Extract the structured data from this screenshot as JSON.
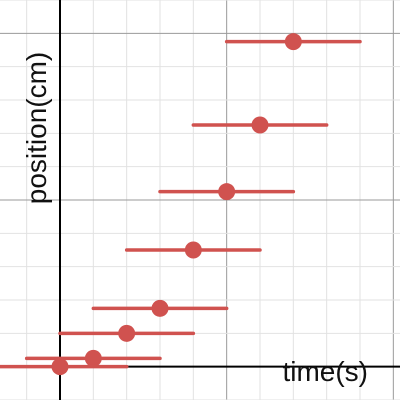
{
  "chart_data": {
    "type": "scatter",
    "title": "",
    "xlabel": "time(s)",
    "ylabel": "position(cm)",
    "grid": true,
    "xlim": [
      -1.8,
      10.2
    ],
    "ylim": [
      -1.0,
      11.0
    ],
    "color": "#d0524f",
    "points": [
      {
        "x": 0.0,
        "y": 0.0,
        "xerr": 2.0
      },
      {
        "x": 1.0,
        "y": 0.25,
        "xerr": 2.0
      },
      {
        "x": 2.0,
        "y": 1.0,
        "xerr": 2.0
      },
      {
        "x": 3.0,
        "y": 1.75,
        "xerr": 2.0
      },
      {
        "x": 4.0,
        "y": 3.5,
        "xerr": 2.0
      },
      {
        "x": 5.0,
        "y": 5.25,
        "xerr": 2.0
      },
      {
        "x": 6.0,
        "y": 7.25,
        "xerr": 2.0
      },
      {
        "x": 7.0,
        "y": 9.75,
        "xerr": 2.0
      }
    ]
  }
}
